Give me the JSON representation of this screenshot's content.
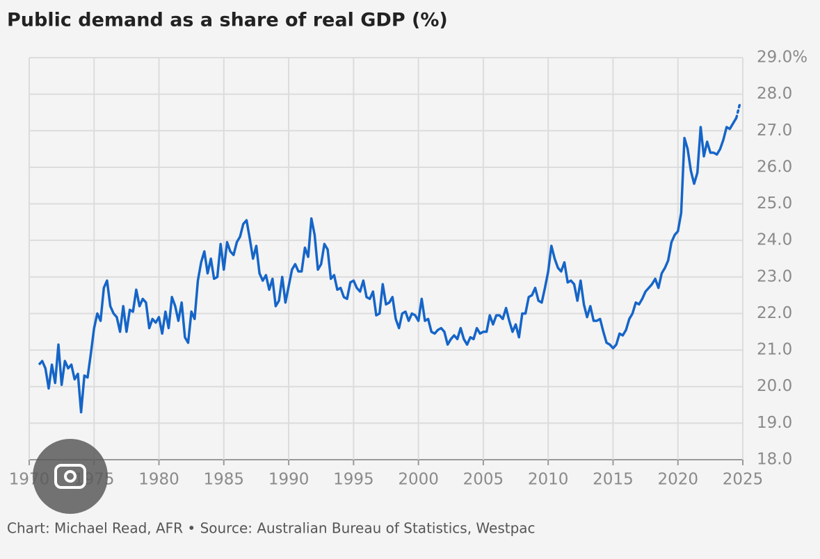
{
  "chart_data": {
    "type": "line",
    "title": "Public demand as a share of real GDP (%)",
    "source": "Chart: Michael Read, AFR • Source: Australian Bureau of Statistics, Westpac",
    "color": "#1565c8",
    "grid": true,
    "xlim": [
      1970,
      2025
    ],
    "xticks": [
      1970,
      1975,
      1980,
      1985,
      1990,
      1995,
      2000,
      2005,
      2010,
      2015,
      2020,
      2025
    ],
    "ylim": [
      18,
      29
    ],
    "yticks": [
      {
        "value": 18,
        "label": "18.0"
      },
      {
        "value": 19,
        "label": "19.0"
      },
      {
        "value": 20,
        "label": "20.0"
      },
      {
        "value": 21,
        "label": "21.0"
      },
      {
        "value": 22,
        "label": "22.0"
      },
      {
        "value": 23,
        "label": "23.0"
      },
      {
        "value": 24,
        "label": "24.0"
      },
      {
        "value": 25,
        "label": "25.0"
      },
      {
        "value": 26,
        "label": "26.0"
      },
      {
        "value": 27,
        "label": "27.0"
      },
      {
        "value": 28,
        "label": "28.0"
      },
      {
        "value": 29,
        "label": "29.0%"
      }
    ],
    "x": [
      1970.75,
      1971,
      1971.25,
      1971.5,
      1971.75,
      1972,
      1972.25,
      1972.5,
      1972.75,
      1973,
      1973.25,
      1973.5,
      1973.75,
      1974,
      1974.25,
      1974.5,
      1974.75,
      1975,
      1975.25,
      1975.5,
      1975.75,
      1976,
      1976.25,
      1976.5,
      1976.75,
      1977,
      1977.25,
      1977.5,
      1977.75,
      1978,
      1978.25,
      1978.5,
      1978.75,
      1979,
      1979.25,
      1979.5,
      1979.75,
      1980,
      1980.25,
      1980.5,
      1980.75,
      1981,
      1981.25,
      1981.5,
      1981.75,
      1982,
      1982.25,
      1982.5,
      1982.75,
      1983,
      1983.25,
      1983.5,
      1983.75,
      1984,
      1984.25,
      1984.5,
      1984.75,
      1985,
      1985.25,
      1985.5,
      1985.75,
      1986,
      1986.25,
      1986.5,
      1986.75,
      1987,
      1987.25,
      1987.5,
      1987.75,
      1988,
      1988.25,
      1988.5,
      1988.75,
      1989,
      1989.25,
      1989.5,
      1989.75,
      1990,
      1990.25,
      1990.5,
      1990.75,
      1991,
      1991.25,
      1991.5,
      1991.75,
      1992,
      1992.25,
      1992.5,
      1992.75,
      1993,
      1993.25,
      1993.5,
      1993.75,
      1994,
      1994.25,
      1994.5,
      1994.75,
      1995,
      1995.25,
      1995.5,
      1995.75,
      1996,
      1996.25,
      1996.5,
      1996.75,
      1997,
      1997.25,
      1997.5,
      1997.75,
      1998,
      1998.25,
      1998.5,
      1998.75,
      1999,
      1999.25,
      1999.5,
      1999.75,
      2000,
      2000.25,
      2000.5,
      2000.75,
      2001,
      2001.25,
      2001.5,
      2001.75,
      2002,
      2002.25,
      2002.5,
      2002.75,
      2003,
      2003.25,
      2003.5,
      2003.75,
      2004,
      2004.25,
      2004.5,
      2004.75,
      2005,
      2005.25,
      2005.5,
      2005.75,
      2006,
      2006.25,
      2006.5,
      2006.75,
      2007,
      2007.25,
      2007.5,
      2007.75,
      2008,
      2008.25,
      2008.5,
      2008.75,
      2009,
      2009.25,
      2009.5,
      2009.75,
      2010,
      2010.25,
      2010.5,
      2010.75,
      2011,
      2011.25,
      2011.5,
      2011.75,
      2012,
      2012.25,
      2012.5,
      2012.75,
      2013,
      2013.25,
      2013.5,
      2013.75,
      2014,
      2014.25,
      2014.5,
      2014.75,
      2015,
      2015.25,
      2015.5,
      2015.75,
      2016,
      2016.25,
      2016.5,
      2016.75,
      2017,
      2017.25,
      2017.5,
      2017.75,
      2018,
      2018.25,
      2018.5,
      2018.75,
      2019,
      2019.25,
      2019.5,
      2019.75,
      2020,
      2020.25,
      2020.5,
      2020.75,
      2021,
      2021.25,
      2021.5,
      2021.75,
      2022,
      2022.25,
      2022.5,
      2022.75,
      2023,
      2023.25,
      2023.5,
      2023.75,
      2024,
      2024.25,
      2024.5
    ],
    "values": [
      20.6,
      20.7,
      20.5,
      19.95,
      20.6,
      20.1,
      21.15,
      20.05,
      20.7,
      20.5,
      20.6,
      20.2,
      20.35,
      19.3,
      20.3,
      20.25,
      20.9,
      21.6,
      22.0,
      21.8,
      22.7,
      22.9,
      22.2,
      22.0,
      21.9,
      21.5,
      22.2,
      21.5,
      22.1,
      22.05,
      22.65,
      22.2,
      22.4,
      22.3,
      21.6,
      21.85,
      21.75,
      21.9,
      21.45,
      22.05,
      21.6,
      22.45,
      22.2,
      21.8,
      22.3,
      21.35,
      21.2,
      22.05,
      21.85,
      22.9,
      23.4,
      23.7,
      23.1,
      23.5,
      22.95,
      23.0,
      23.9,
      23.2,
      23.95,
      23.7,
      23.6,
      23.95,
      24.1,
      24.45,
      24.55,
      24.05,
      23.5,
      23.85,
      23.1,
      22.9,
      23.05,
      22.65,
      22.95,
      22.2,
      22.35,
      23.0,
      22.3,
      22.75,
      23.2,
      23.35,
      23.15,
      23.15,
      23.8,
      23.55,
      24.6,
      24.15,
      23.2,
      23.35,
      23.9,
      23.75,
      22.95,
      23.05,
      22.65,
      22.7,
      22.45,
      22.4,
      22.85,
      22.9,
      22.7,
      22.6,
      22.9,
      22.45,
      22.4,
      22.6,
      21.95,
      22.0,
      22.8,
      22.25,
      22.3,
      22.45,
      21.85,
      21.6,
      22.0,
      22.05,
      21.8,
      22.0,
      21.95,
      21.8,
      22.4,
      21.8,
      21.85,
      21.5,
      21.45,
      21.55,
      21.6,
      21.5,
      21.15,
      21.3,
      21.4,
      21.3,
      21.6,
      21.3,
      21.15,
      21.35,
      21.3,
      21.6,
      21.45,
      21.5,
      21.5,
      21.95,
      21.7,
      21.95,
      21.95,
      21.85,
      22.15,
      21.8,
      21.5,
      21.7,
      21.35,
      22.0,
      22.0,
      22.45,
      22.5,
      22.7,
      22.35,
      22.3,
      22.7,
      23.15,
      23.85,
      23.5,
      23.25,
      23.15,
      23.4,
      22.85,
      22.9,
      22.8,
      22.35,
      22.9,
      22.25,
      21.9,
      22.2,
      21.8,
      21.8,
      21.85,
      21.5,
      21.2,
      21.15,
      21.05,
      21.15,
      21.45,
      21.4,
      21.55,
      21.85,
      22.0,
      22.3,
      22.25,
      22.4,
      22.6,
      22.7,
      22.8,
      22.95,
      22.7,
      23.1,
      23.25,
      23.45,
      23.95,
      24.15,
      24.25,
      24.75,
      26.8,
      26.5,
      25.9,
      25.55,
      25.85,
      27.1,
      26.3,
      26.7,
      26.4,
      26.4,
      26.35,
      26.5,
      26.75,
      27.1,
      27.05,
      27.2,
      27.35
    ],
    "projection": {
      "x": [
        2024.5,
        2024.75
      ],
      "values": [
        27.35,
        27.7
      ]
    }
  }
}
